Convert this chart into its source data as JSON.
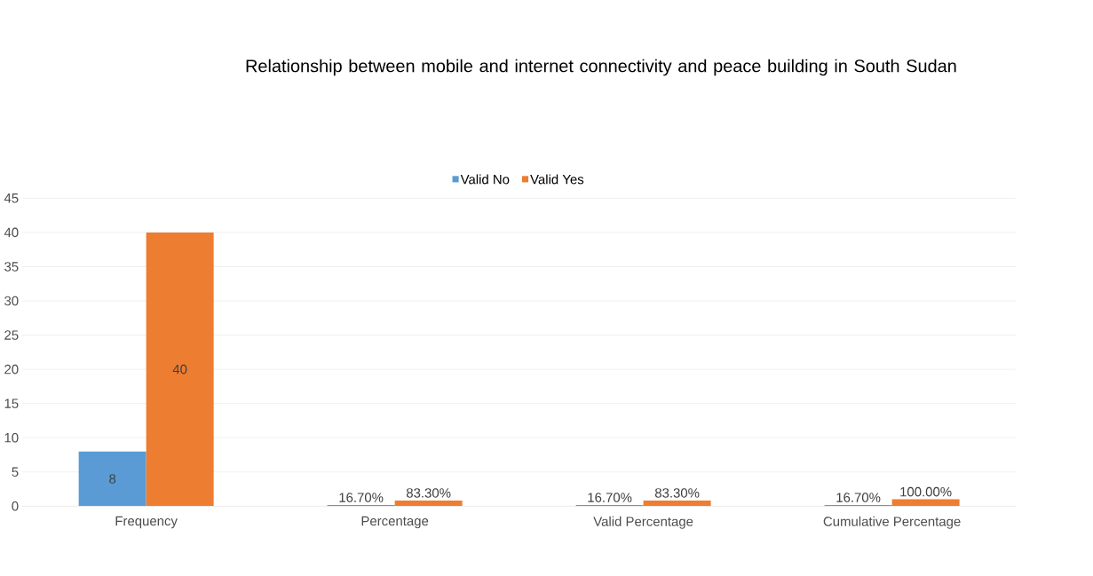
{
  "chart_data": {
    "type": "bar",
    "title": "Relationship between mobile and internet connectivity and peace building in South Sudan",
    "categories": [
      "Frequency",
      "Percentage",
      "Valid Percentage",
      "Cumulative Percentage"
    ],
    "series": [
      {
        "name": "Valid No",
        "color": "#5b9bd5",
        "values": [
          8,
          0.167,
          0.167,
          0.167
        ],
        "value_labels": [
          "8",
          "16.70%",
          "16.70%",
          "16.70%"
        ]
      },
      {
        "name": "Valid Yes",
        "color": "#ed7d31",
        "values": [
          40,
          0.833,
          0.833,
          1.0
        ],
        "value_labels": [
          "40",
          "83.30%",
          "83.30%",
          "100.00%"
        ]
      }
    ],
    "ylim": [
      0,
      45
    ],
    "yticks": [
      0,
      5,
      10,
      15,
      20,
      25,
      30,
      35,
      40,
      45
    ],
    "grid": "y",
    "legend": "top"
  }
}
